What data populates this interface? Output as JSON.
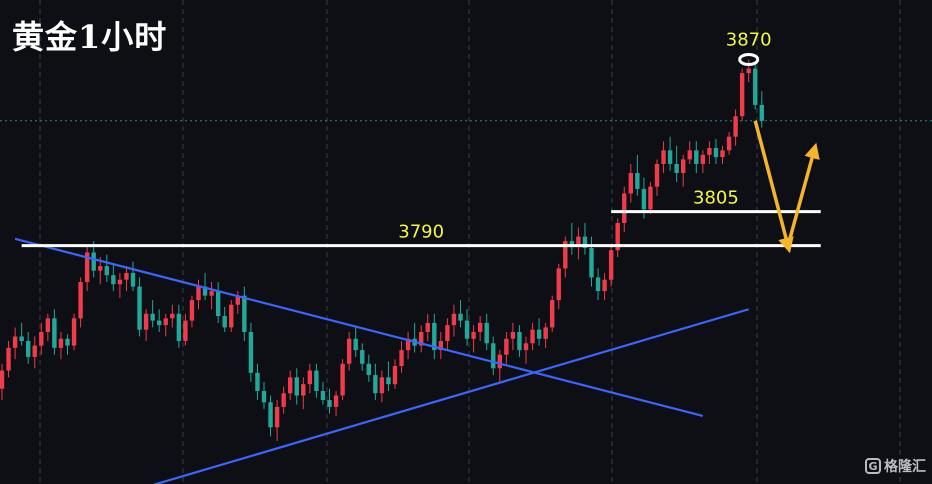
{
  "title": "黄金1小时",
  "watermark": {
    "text": "格隆汇",
    "icon": "G"
  },
  "colors": {
    "background": "#0d0f14",
    "up": "#ef3b4a",
    "down": "#22a89a",
    "trendline": "#3a66ff",
    "level_line": "#ffffff",
    "label": "#f5f54a",
    "forecast": "#f6b428",
    "current_price_line": "#1f8c86",
    "grid": "#3a3d45"
  },
  "chart_data": {
    "type": "candlestick",
    "timeframe": "1H",
    "instrument": "Gold",
    "ylim": [
      3700,
      3885
    ],
    "grid": "vertical dashed",
    "candles": [
      [
        3727,
        3738,
        3722,
        3735
      ],
      [
        3735,
        3748,
        3732,
        3745
      ],
      [
        3745,
        3754,
        3740,
        3750
      ],
      [
        3750,
        3756,
        3746,
        3748
      ],
      [
        3748,
        3752,
        3738,
        3741
      ],
      [
        3741,
        3750,
        3736,
        3746
      ],
      [
        3746,
        3756,
        3742,
        3752
      ],
      [
        3752,
        3760,
        3748,
        3758
      ],
      [
        3758,
        3762,
        3742,
        3745
      ],
      [
        3745,
        3752,
        3740,
        3749
      ],
      [
        3749,
        3751,
        3742,
        3746
      ],
      [
        3746,
        3760,
        3744,
        3758
      ],
      [
        3758,
        3776,
        3754,
        3774
      ],
      [
        3774,
        3790,
        3770,
        3787
      ],
      [
        3787,
        3792,
        3776,
        3779
      ],
      [
        3779,
        3785,
        3773,
        3781
      ],
      [
        3781,
        3786,
        3774,
        3777
      ],
      [
        3777,
        3782,
        3770,
        3773
      ],
      [
        3773,
        3778,
        3767,
        3775
      ],
      [
        3775,
        3781,
        3770,
        3778
      ],
      [
        3778,
        3783,
        3770,
        3772
      ],
      [
        3772,
        3776,
        3750,
        3753
      ],
      [
        3753,
        3762,
        3748,
        3760
      ],
      [
        3760,
        3766,
        3754,
        3757
      ],
      [
        3757,
        3762,
        3752,
        3755
      ],
      [
        3755,
        3760,
        3750,
        3758
      ],
      [
        3758,
        3764,
        3754,
        3760
      ],
      [
        3760,
        3764,
        3745,
        3748
      ],
      [
        3748,
        3760,
        3746,
        3757
      ],
      [
        3757,
        3768,
        3754,
        3766
      ],
      [
        3766,
        3775,
        3762,
        3772
      ],
      [
        3772,
        3778,
        3766,
        3768
      ],
      [
        3768,
        3774,
        3762,
        3770
      ],
      [
        3770,
        3774,
        3756,
        3759
      ],
      [
        3759,
        3763,
        3752,
        3754
      ],
      [
        3754,
        3766,
        3752,
        3764
      ],
      [
        3764,
        3770,
        3760,
        3768
      ],
      [
        3768,
        3772,
        3748,
        3752
      ],
      [
        3752,
        3756,
        3730,
        3734
      ],
      [
        3734,
        3738,
        3722,
        3726
      ],
      [
        3726,
        3730,
        3718,
        3721
      ],
      [
        3721,
        3724,
        3706,
        3710
      ],
      [
        3710,
        3722,
        3704,
        3719
      ],
      [
        3719,
        3728,
        3716,
        3725
      ],
      [
        3725,
        3735,
        3722,
        3732
      ],
      [
        3732,
        3736,
        3720,
        3724
      ],
      [
        3724,
        3732,
        3718,
        3729
      ],
      [
        3729,
        3738,
        3725,
        3735
      ],
      [
        3735,
        3738,
        3723,
        3726
      ],
      [
        3726,
        3730,
        3720,
        3722
      ],
      [
        3722,
        3727,
        3716,
        3719
      ],
      [
        3719,
        3726,
        3715,
        3724
      ],
      [
        3724,
        3740,
        3722,
        3738
      ],
      [
        3738,
        3752,
        3735,
        3749
      ],
      [
        3749,
        3754,
        3741,
        3744
      ],
      [
        3744,
        3747,
        3735,
        3738
      ],
      [
        3738,
        3742,
        3730,
        3733
      ],
      [
        3733,
        3738,
        3722,
        3725
      ],
      [
        3725,
        3735,
        3721,
        3732
      ],
      [
        3732,
        3739,
        3726,
        3729
      ],
      [
        3729,
        3740,
        3727,
        3737
      ],
      [
        3737,
        3748,
        3734,
        3744
      ],
      [
        3744,
        3752,
        3740,
        3749
      ],
      [
        3749,
        3756,
        3743,
        3746
      ],
      [
        3746,
        3755,
        3743,
        3752
      ],
      [
        3752,
        3760,
        3748,
        3756
      ],
      [
        3756,
        3760,
        3740,
        3744
      ],
      [
        3744,
        3752,
        3740,
        3748
      ],
      [
        3748,
        3758,
        3744,
        3755
      ],
      [
        3755,
        3764,
        3750,
        3760
      ],
      [
        3760,
        3766,
        3754,
        3757
      ],
      [
        3757,
        3762,
        3746,
        3749
      ],
      [
        3749,
        3755,
        3743,
        3752
      ],
      [
        3752,
        3759,
        3748,
        3756
      ],
      [
        3756,
        3760,
        3744,
        3747
      ],
      [
        3747,
        3750,
        3733,
        3736
      ],
      [
        3736,
        3744,
        3730,
        3742
      ],
      [
        3742,
        3752,
        3738,
        3749
      ],
      [
        3749,
        3756,
        3744,
        3752
      ],
      [
        3752,
        3755,
        3741,
        3744
      ],
      [
        3744,
        3750,
        3738,
        3747
      ],
      [
        3747,
        3756,
        3744,
        3753
      ],
      [
        3753,
        3758,
        3746,
        3749
      ],
      [
        3749,
        3756,
        3745,
        3754
      ],
      [
        3754,
        3768,
        3752,
        3766
      ],
      [
        3766,
        3782,
        3762,
        3780
      ],
      [
        3780,
        3794,
        3776,
        3792
      ],
      [
        3792,
        3800,
        3786,
        3790
      ],
      [
        3790,
        3798,
        3784,
        3794
      ],
      [
        3794,
        3800,
        3786,
        3789
      ],
      [
        3789,
        3794,
        3772,
        3776
      ],
      [
        3776,
        3780,
        3766,
        3770
      ],
      [
        3770,
        3778,
        3766,
        3775
      ],
      [
        3775,
        3790,
        3772,
        3788
      ],
      [
        3788,
        3802,
        3785,
        3800
      ],
      [
        3800,
        3816,
        3796,
        3813
      ],
      [
        3813,
        3826,
        3809,
        3822
      ],
      [
        3822,
        3830,
        3812,
        3815
      ],
      [
        3815,
        3820,
        3802,
        3806
      ],
      [
        3806,
        3818,
        3804,
        3816
      ],
      [
        3816,
        3828,
        3812,
        3826
      ],
      [
        3826,
        3836,
        3822,
        3832
      ],
      [
        3832,
        3838,
        3823,
        3826
      ],
      [
        3826,
        3834,
        3818,
        3822
      ],
      [
        3822,
        3830,
        3816,
        3828
      ],
      [
        3828,
        3836,
        3826,
        3832
      ],
      [
        3832,
        3836,
        3822,
        3826
      ],
      [
        3826,
        3832,
        3822,
        3830
      ],
      [
        3830,
        3836,
        3826,
        3833
      ],
      [
        3833,
        3837,
        3826,
        3829
      ],
      [
        3829,
        3834,
        3826,
        3832
      ],
      [
        3832,
        3840,
        3830,
        3838
      ],
      [
        3838,
        3850,
        3834,
        3847
      ],
      [
        3847,
        3868,
        3845,
        3866
      ],
      [
        3866,
        3872,
        3862,
        3868
      ],
      [
        3868,
        3870,
        3850,
        3852
      ],
      [
        3852,
        3858,
        3842,
        3845
      ]
    ],
    "levels": [
      {
        "label": "3790",
        "value": 3790,
        "from": 3,
        "to": 125
      },
      {
        "label": "3805",
        "value": 3805,
        "from": 93,
        "to": 125
      }
    ],
    "high_label": "3870",
    "trendlines": [
      {
        "name": "descending",
        "p1": [
          2,
          3793
        ],
        "p2": [
          107,
          3715
        ]
      },
      {
        "name": "ascending",
        "p1": [
          20,
          3682
        ],
        "p2": [
          114,
          3762
        ]
      }
    ],
    "forecast": [
      [
        115,
        3845
      ],
      [
        120,
        3790
      ],
      [
        124,
        3832
      ]
    ],
    "current_price": 3845
  }
}
